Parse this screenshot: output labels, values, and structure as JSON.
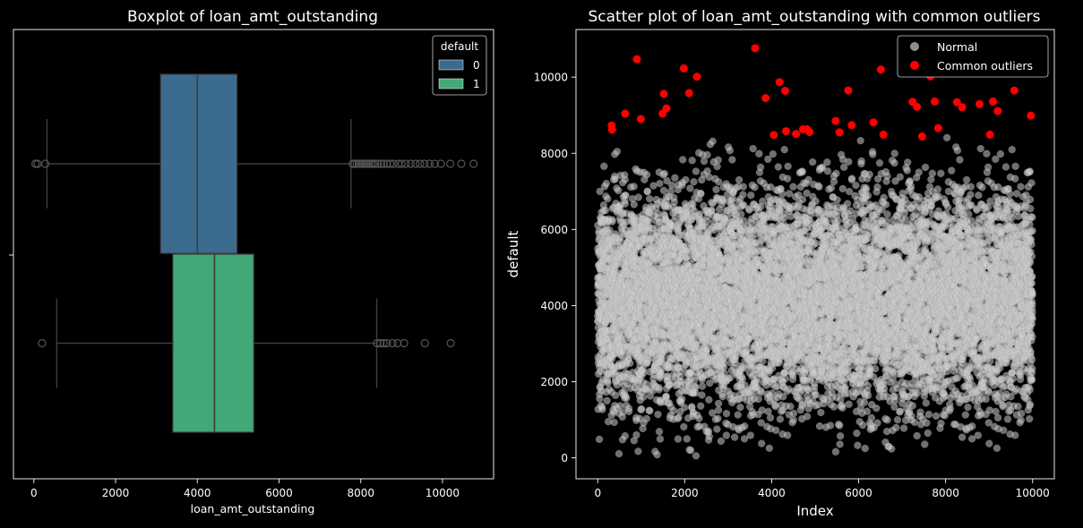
{
  "chart_data": [
    {
      "type": "boxplot",
      "title": "Boxplot of loan_amt_outstanding",
      "xlabel": "loan_amt_outstanding",
      "ylabel": "",
      "xlim": [
        -500,
        11250
      ],
      "xticks": [
        0,
        2000,
        4000,
        6000,
        8000,
        10000
      ],
      "legend": {
        "title": "default",
        "position": "top-right"
      },
      "series": [
        {
          "name": "0",
          "color": "#3b6b8f",
          "whisker_low": 320,
          "q1": 3100,
          "median": 4000,
          "q3": 4970,
          "whisker_high": 7760,
          "outliers": [
            40,
            90,
            280,
            7800,
            7850,
            7900,
            7950,
            8000,
            8050,
            8100,
            8150,
            8200,
            8250,
            8300,
            8350,
            8420,
            8500,
            8560,
            8640,
            8720,
            8800,
            8920,
            9000,
            9100,
            9220,
            9340,
            9450,
            9560,
            9680,
            9810,
            9960,
            10190,
            10460,
            10760
          ]
        },
        {
          "name": "1",
          "color": "#42a877",
          "whisker_low": 560,
          "q1": 3400,
          "median": 4420,
          "q3": 5380,
          "whisker_high": 8390,
          "outliers": [
            200,
            8400,
            8480,
            8560,
            8640,
            8780,
            8900,
            9060,
            9570,
            10200
          ]
        }
      ]
    },
    {
      "type": "scatter",
      "title": "Scatter plot of loan_amt_outstanding with common outliers",
      "xlabel": "Index",
      "ylabel": "default",
      "xlim": [
        -500,
        10500
      ],
      "ylim": [
        -550,
        11250
      ],
      "xticks": [
        0,
        2000,
        4000,
        6000,
        8000,
        10000
      ],
      "yticks": [
        0,
        2000,
        4000,
        6000,
        8000,
        10000
      ],
      "legend": {
        "position": "top-right"
      },
      "series": [
        {
          "name": "Normal",
          "color": "#cccccc",
          "n_points": 10000,
          "distribution": {
            "mean": 4160,
            "std": 1400,
            "min": 50,
            "max": 8500
          }
        },
        {
          "name": "Common outliers",
          "color": "#ff0000",
          "points": [
            [
              320,
              8730
            ],
            [
              330,
              8620
            ],
            [
              630,
              9040
            ],
            [
              900,
              10470
            ],
            [
              990,
              8900
            ],
            [
              1490,
              9040
            ],
            [
              1520,
              9560
            ],
            [
              1580,
              9180
            ],
            [
              1980,
              10230
            ],
            [
              2100,
              9580
            ],
            [
              2280,
              10010
            ],
            [
              3620,
              10760
            ],
            [
              3860,
              9450
            ],
            [
              4050,
              8480
            ],
            [
              4180,
              9870
            ],
            [
              4310,
              9640
            ],
            [
              4330,
              8580
            ],
            [
              4560,
              8510
            ],
            [
              4720,
              8630
            ],
            [
              4810,
              8630
            ],
            [
              4870,
              8560
            ],
            [
              5470,
              8850
            ],
            [
              5560,
              8550
            ],
            [
              5760,
              9650
            ],
            [
              5840,
              8740
            ],
            [
              6340,
              8810
            ],
            [
              6510,
              10200
            ],
            [
              6570,
              8490
            ],
            [
              7240,
              9350
            ],
            [
              7340,
              9220
            ],
            [
              7460,
              8440
            ],
            [
              7650,
              10020
            ],
            [
              7750,
              9360
            ],
            [
              7830,
              8660
            ],
            [
              8260,
              9340
            ],
            [
              8380,
              9210
            ],
            [
              8780,
              9290
            ],
            [
              9020,
              8490
            ],
            [
              9090,
              9360
            ],
            [
              9200,
              9110
            ],
            [
              9580,
              9650
            ],
            [
              9960,
              8990
            ]
          ]
        }
      ]
    }
  ]
}
